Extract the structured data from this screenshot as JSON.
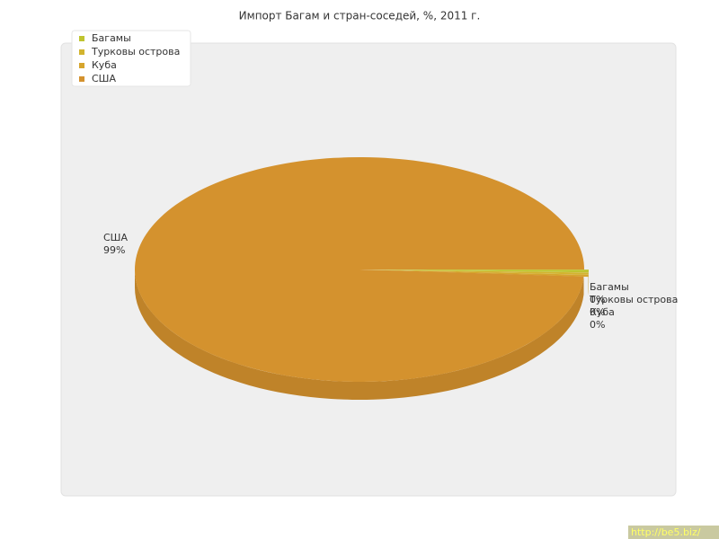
{
  "chart_data": {
    "type": "pie3d",
    "title": "Импорт Багам и стран-соседей, %, 2011 г.",
    "categories": [
      "Багамы",
      "Турковы острова",
      "Куба",
      "США"
    ],
    "values": [
      0.4,
      0.3,
      0.3,
      99
    ],
    "value_labels": [
      "0%",
      "0%",
      "0%",
      "99%"
    ],
    "colors": [
      "#bfc42f",
      "#d2b42e",
      "#d6a52d",
      "#d4922e"
    ],
    "legend": "top-left"
  },
  "watermark": "http://be5.biz/"
}
